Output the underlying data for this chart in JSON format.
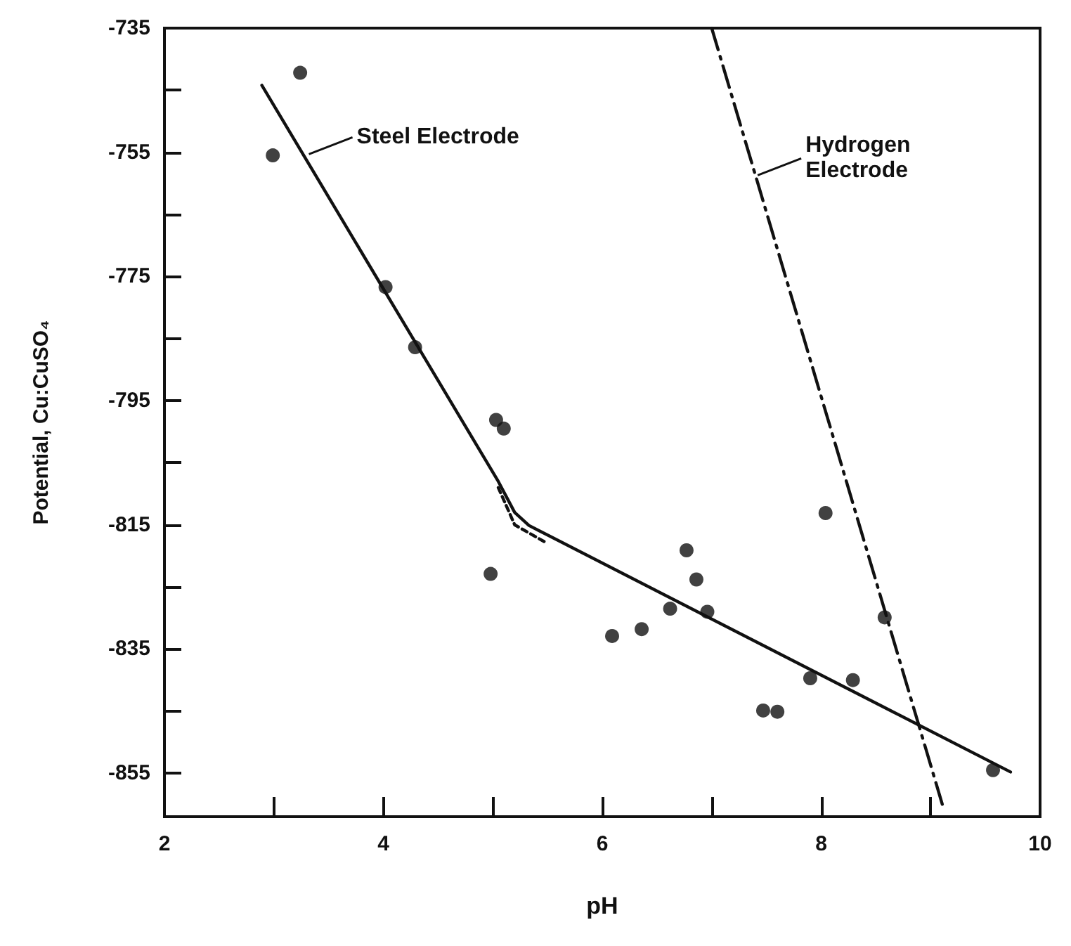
{
  "chart_data": {
    "type": "scatter",
    "xlabel": "pH",
    "ylabel": "Potential, Cu:CuSO₄",
    "xlim": [
      2,
      10
    ],
    "xticks": [
      2,
      {
        "value": 3,
        "label": null
      },
      4,
      {
        "value": 5,
        "label": null
      },
      6,
      {
        "value": 7,
        "label": null
      },
      8,
      {
        "value": 9,
        "label": null
      },
      10
    ],
    "ylim": [
      -862,
      -735
    ],
    "yticks": [
      -855,
      {
        "value": -845,
        "label": null
      },
      -835,
      {
        "value": -825,
        "label": null
      },
      -815,
      {
        "value": -805,
        "label": null
      },
      -795,
      {
        "value": -785,
        "label": null
      },
      -775,
      {
        "value": -765,
        "label": null
      },
      -755,
      {
        "value": -745,
        "label": null
      },
      -735
    ],
    "grid": false,
    "marker": "circle",
    "series": [
      {
        "color": "#111111",
        "x": [
          2.99,
          3.24,
          4.02,
          4.29,
          5.03,
          5.1,
          4.98,
          6.77,
          6.86,
          6.62,
          6.96,
          6.36,
          6.09,
          7.47,
          7.6,
          7.9,
          8.29,
          8.04,
          8.58,
          9.57
        ],
        "values": [
          -755.5,
          -742.2,
          -776.7,
          -786.4,
          -798.1,
          -799.5,
          -822.9,
          -819.1,
          -823.8,
          -828.5,
          -829,
          -831.8,
          -832.9,
          -844.9,
          -845.1,
          -839.7,
          -840,
          -813.1,
          -829.9,
          -854.5
        ]
      },
      {
        "type": "line",
        "color": "#111111",
        "line_style": "solid",
        "marker": "none",
        "x": [
          2.89,
          5.05,
          5.2,
          5.33,
          9.73
        ],
        "values": [
          -744.2,
          -808,
          -813,
          -815.1,
          -854.8
        ]
      },
      {
        "type": "line",
        "color": "#111111",
        "line_style": "dotted",
        "marker": "none",
        "x": [
          5.05,
          5.2,
          5.5
        ],
        "values": [
          -809,
          -815,
          -818
        ]
      },
      {
        "type": "line",
        "color": "#111111",
        "line_style": "dashed",
        "marker": "none",
        "x": [
          7.0,
          9.11
        ],
        "values": [
          -735,
          -860.2
        ]
      }
    ],
    "annotations": [
      {
        "text": "Steel Electrode",
        "x": 3.32,
        "y": -755.3
      },
      {
        "text": "Hydrogen\nElectrode",
        "x": 7.42,
        "y": -758.7
      }
    ]
  }
}
